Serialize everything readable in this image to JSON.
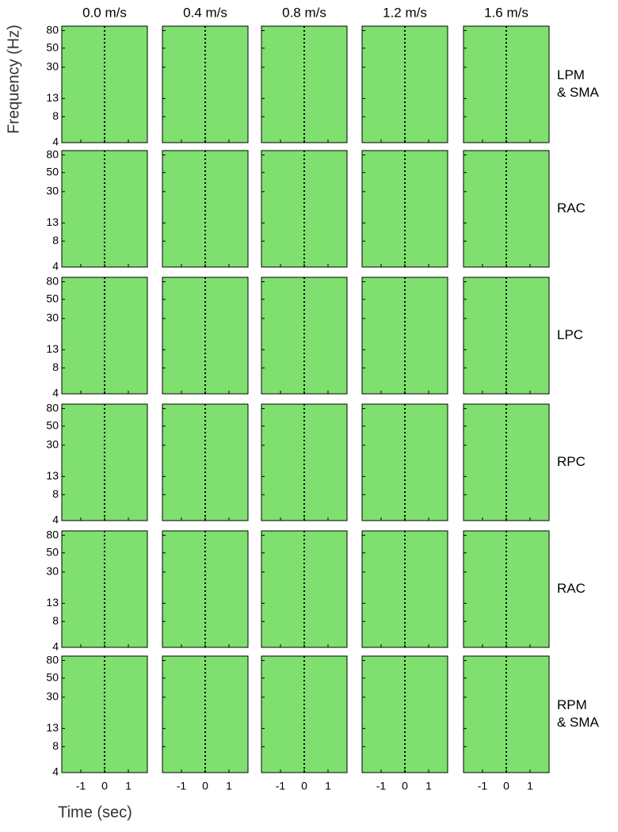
{
  "chart_data": {
    "type": "spectrogram-grid",
    "columns": [
      "0.0 m/s",
      "0.4 m/s",
      "0.8 m/s",
      "1.2 m/s",
      "1.6 m/s"
    ],
    "rows": [
      [
        "LPM",
        "& SMA"
      ],
      [
        "RAC"
      ],
      [
        "LPC"
      ],
      [
        "RPC"
      ],
      [
        "RAC"
      ],
      [
        "RPM",
        "& SMA"
      ]
    ],
    "xlabel": "Time (sec)",
    "ylabel": "Frequency (Hz)",
    "xlim": [
      -1.8,
      1.8
    ],
    "xticks": [
      -1,
      0,
      1
    ],
    "ylim": [
      4,
      90
    ],
    "yticks": [
      4,
      8,
      13,
      30,
      50,
      80
    ],
    "ylog": true,
    "background": "#7fdf6f",
    "zero_line": 0
  }
}
